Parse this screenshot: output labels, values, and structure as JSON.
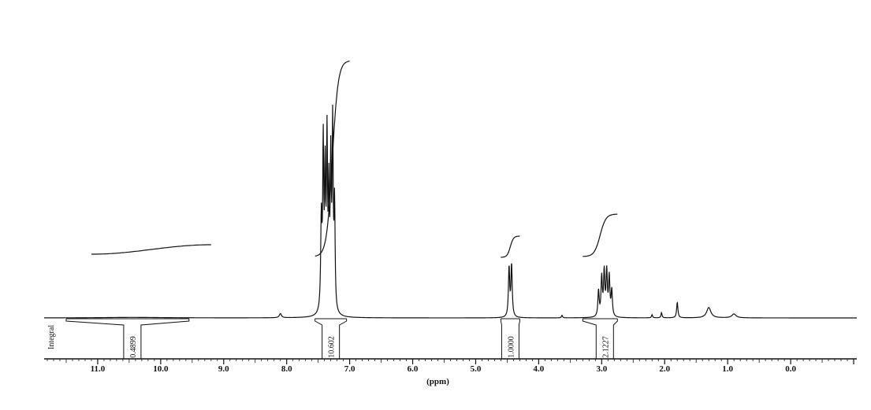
{
  "chart_data": {
    "type": "line",
    "title": "",
    "xlabel": "(ppm)",
    "ylabel": "",
    "xlim": [
      11.85,
      -1.05
    ],
    "x_reversed": true,
    "ticks": [
      {
        "value": 11.0,
        "label": "11.0"
      },
      {
        "value": 10.0,
        "label": "10.0"
      },
      {
        "value": 9.0,
        "label": "9.0"
      },
      {
        "value": 8.0,
        "label": "8.0"
      },
      {
        "value": 7.0,
        "label": "7.0"
      },
      {
        "value": 6.0,
        "label": "6.0"
      },
      {
        "value": 5.0,
        "label": "5.0"
      },
      {
        "value": 4.0,
        "label": "4.0"
      },
      {
        "value": 3.0,
        "label": "3.0"
      },
      {
        "value": 2.0,
        "label": "2.0"
      },
      {
        "value": 1.0,
        "label": "1.0"
      },
      {
        "value": 0.0,
        "label": "0.0"
      }
    ],
    "integral_label": "Integral",
    "integrals": [
      {
        "from": 11.5,
        "to": 9.55,
        "value": "0.4899",
        "center": 10.45
      },
      {
        "from": 7.55,
        "to": 7.05,
        "value": "10.602",
        "center": 7.3
      },
      {
        "from": 4.6,
        "to": 4.3,
        "value": "1.0000",
        "center": 4.45
      },
      {
        "from": 3.3,
        "to": 2.75,
        "value": "2.1227",
        "center": 2.95
      }
    ],
    "peaks": [
      {
        "ppm": 10.45,
        "height": 0.002,
        "width": 0.6
      },
      {
        "ppm": 8.1,
        "height": 0.016,
        "width": 0.02
      },
      {
        "ppm": 7.45,
        "height": 0.35,
        "width": 0.012
      },
      {
        "ppm": 7.42,
        "height": 0.62,
        "width": 0.01
      },
      {
        "ppm": 7.39,
        "height": 0.5,
        "width": 0.01
      },
      {
        "ppm": 7.36,
        "height": 0.64,
        "width": 0.01
      },
      {
        "ppm": 7.33,
        "height": 0.43,
        "width": 0.01
      },
      {
        "ppm": 7.3,
        "height": 0.55,
        "width": 0.01
      },
      {
        "ppm": 7.27,
        "height": 0.7,
        "width": 0.01
      },
      {
        "ppm": 7.24,
        "height": 0.4,
        "width": 0.01
      },
      {
        "ppm": 4.47,
        "height": 0.19,
        "width": 0.012
      },
      {
        "ppm": 4.43,
        "height": 0.2,
        "width": 0.012
      },
      {
        "ppm": 3.05,
        "height": 0.1,
        "width": 0.012
      },
      {
        "ppm": 3.0,
        "height": 0.15,
        "width": 0.012
      },
      {
        "ppm": 2.96,
        "height": 0.17,
        "width": 0.012
      },
      {
        "ppm": 2.92,
        "height": 0.17,
        "width": 0.012
      },
      {
        "ppm": 2.88,
        "height": 0.15,
        "width": 0.012
      },
      {
        "ppm": 2.84,
        "height": 0.1,
        "width": 0.012
      },
      {
        "ppm": 3.63,
        "height": 0.01,
        "width": 0.01
      },
      {
        "ppm": 2.2,
        "height": 0.012,
        "width": 0.01
      },
      {
        "ppm": 2.05,
        "height": 0.02,
        "width": 0.01
      },
      {
        "ppm": 1.8,
        "height": 0.06,
        "width": 0.012
      },
      {
        "ppm": 1.3,
        "height": 0.04,
        "width": 0.04
      },
      {
        "ppm": 0.9,
        "height": 0.015,
        "width": 0.04
      }
    ],
    "grid": false,
    "legend": "none"
  }
}
